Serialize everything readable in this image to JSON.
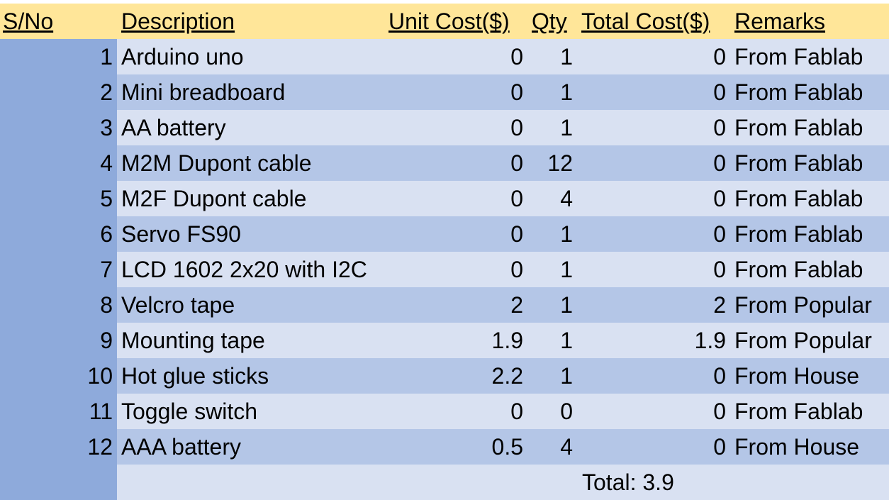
{
  "headers": {
    "sno": "S/No",
    "description": "Description",
    "unit_cost": "Unit Cost($)",
    "qty": "Qty",
    "total_cost": "Total Cost($)",
    "remarks": "Remarks"
  },
  "rows": [
    {
      "sno": "1",
      "description": "Arduino uno",
      "unit_cost": "0",
      "qty": "1",
      "total_cost": "0",
      "remarks": "From Fablab"
    },
    {
      "sno": "2",
      "description": "Mini breadboard",
      "unit_cost": "0",
      "qty": "1",
      "total_cost": "0",
      "remarks": "From Fablab"
    },
    {
      "sno": "3",
      "description": "AA battery",
      "unit_cost": "0",
      "qty": "1",
      "total_cost": "0",
      "remarks": "From Fablab"
    },
    {
      "sno": "4",
      "description": "M2M Dupont cable",
      "unit_cost": "0",
      "qty": "12",
      "total_cost": "0",
      "remarks": "From Fablab"
    },
    {
      "sno": "5",
      "description": "M2F Dupont cable",
      "unit_cost": "0",
      "qty": "4",
      "total_cost": "0",
      "remarks": "From Fablab"
    },
    {
      "sno": "6",
      "description": "Servo FS90",
      "unit_cost": "0",
      "qty": "1",
      "total_cost": "0",
      "remarks": "From Fablab"
    },
    {
      "sno": "7",
      "description": "LCD 1602 2x20 with I2C",
      "unit_cost": "0",
      "qty": "1",
      "total_cost": "0",
      "remarks": "From Fablab"
    },
    {
      "sno": "8",
      "description": "Velcro tape",
      "unit_cost": "2",
      "qty": "1",
      "total_cost": "2",
      "remarks": "From Popular"
    },
    {
      "sno": "9",
      "description": "Mounting tape",
      "unit_cost": "1.9",
      "qty": "1",
      "total_cost": "1.9",
      "remarks": "From Popular"
    },
    {
      "sno": "10",
      "description": "Hot glue sticks",
      "unit_cost": "2.2",
      "qty": "1",
      "total_cost": "0",
      "remarks": "From House"
    },
    {
      "sno": "11",
      "description": "Toggle switch",
      "unit_cost": "0",
      "qty": "0",
      "total_cost": "0",
      "remarks": "From Fablab"
    },
    {
      "sno": "12",
      "description": "AAA battery",
      "unit_cost": "0.5",
      "qty": "4",
      "total_cost": "0",
      "remarks": "From House"
    }
  ],
  "total": "Total: 3.9",
  "colors": {
    "header_bg": "#ffe699",
    "sno_bg": "#8eaadb",
    "row_light": "#d9e1f2",
    "row_dark": "#b4c6e7"
  }
}
